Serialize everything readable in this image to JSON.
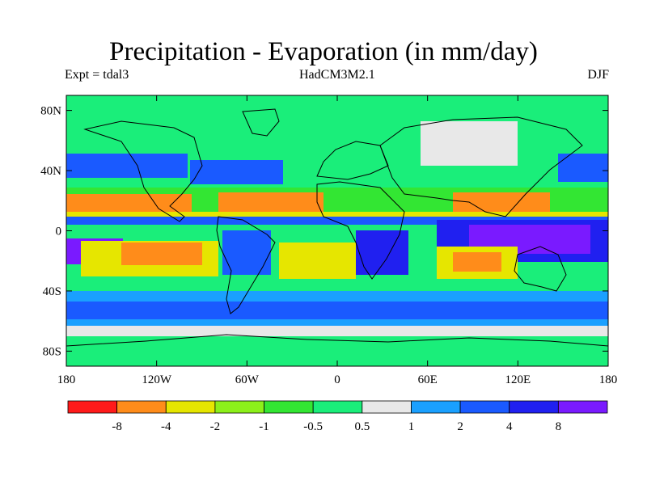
{
  "title": "Precipitation - Evaporation (in mm/day)",
  "subtitle_left": "Expt = tdal3",
  "subtitle_center": "HadCM3M2.1",
  "subtitle_right": "DJF",
  "map": {
    "projection": "cylindrical equidistant",
    "lon_range": [
      -180,
      180
    ],
    "lat_range": [
      -90,
      90
    ],
    "y_ticks": [
      {
        "lat": 80,
        "label": "80N"
      },
      {
        "lat": 40,
        "label": "40N"
      },
      {
        "lat": 0,
        "label": "0"
      },
      {
        "lat": -40,
        "label": "40S"
      },
      {
        "lat": -80,
        "label": "80S"
      }
    ],
    "x_ticks": [
      {
        "lon": -180,
        "label": "180"
      },
      {
        "lon": -120,
        "label": "120W"
      },
      {
        "lon": -60,
        "label": "60W"
      },
      {
        "lon": 0,
        "label": "0"
      },
      {
        "lon": 60,
        "label": "60E"
      },
      {
        "lon": 120,
        "label": "120E"
      },
      {
        "lon": 180,
        "label": "180"
      }
    ]
  },
  "colorbar": {
    "colors": [
      "#ff1a1a",
      "#ff8c1a",
      "#e6e600",
      "#8cf01a",
      "#33e633",
      "#1aee7a",
      "#e8e8e8",
      "#1aa0ff",
      "#1a5aff",
      "#2020f0",
      "#7a1aff"
    ],
    "labels": [
      "-8",
      "-4",
      "-2",
      "-1",
      "-0.5",
      "0.5",
      "1",
      "2",
      "4",
      "8"
    ]
  }
}
